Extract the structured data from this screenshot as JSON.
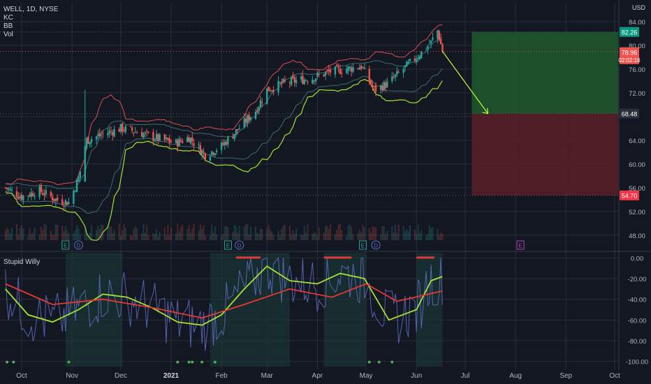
{
  "header": {
    "symbol": "WELL, 1D, NYSE",
    "currency": "USD",
    "indicators": [
      "KC",
      "BB",
      "Vol"
    ],
    "oscillator_name": "Stupid Willy"
  },
  "colors": {
    "background": "#131722",
    "grid": "#2a2e39",
    "candle_up": "#26a69a",
    "candle_down": "#ef5350",
    "bb_band": "#d84f4f",
    "kc_band": "#a6e22e",
    "target_zone": "#1f5a2b",
    "stop_zone": "#5a1f27",
    "osc_line": "#5c6bc0",
    "osc_fast": "#a6e22e",
    "osc_slow": "#e53935"
  },
  "price_badges": {
    "target": "82.26",
    "current": "78.96",
    "countdown": "02:02:16",
    "entry": "68.48",
    "stop": "54.70"
  },
  "event_markers": [
    {
      "label": "E",
      "x_month": "Nov-pre"
    },
    {
      "label": "D",
      "x_month": "Nov"
    },
    {
      "label": "E",
      "x_month": "Feb"
    },
    {
      "label": "D",
      "x_month": "Feb"
    },
    {
      "label": "E",
      "x_month": "Apr-end"
    },
    {
      "label": "D",
      "x_month": "May"
    },
    {
      "label": "E",
      "x_month": "Aug"
    }
  ],
  "chart_data": [
    {
      "type": "line",
      "title": "WELL, 1D, NYSE",
      "ylabel": "USD",
      "y_ticks": [
        84.0,
        80.0,
        76.0,
        72.0,
        68.0,
        64.0,
        60.0,
        56.0,
        52.0,
        48.0
      ],
      "y_tick_labels": [
        "84.00",
        "80.00",
        "76.00",
        "72.00",
        "",
        "64.00",
        "60.00",
        "56.00",
        "52.00",
        "48.00"
      ],
      "ylim": [
        45.5,
        86.0
      ],
      "x_ticks": [
        "Oct",
        "Nov",
        "Dec",
        "2021",
        "Feb",
        "Mar",
        "Apr",
        "May",
        "Jun",
        "Jul",
        "Aug",
        "Sep",
        "Oct"
      ],
      "series": [
        {
          "name": "Close",
          "x": [
            "2020-09-21",
            "2020-10-01",
            "2020-10-12",
            "2020-10-22",
            "2020-10-30",
            "2020-11-05",
            "2020-11-10",
            "2020-11-20",
            "2020-12-01",
            "2020-12-10",
            "2020-12-21",
            "2021-01-04",
            "2021-01-12",
            "2021-01-22",
            "2021-02-01",
            "2021-02-10",
            "2021-02-22",
            "2021-03-01",
            "2021-03-10",
            "2021-03-18",
            "2021-03-29",
            "2021-04-08",
            "2021-04-19",
            "2021-04-28",
            "2021-05-06",
            "2021-05-14",
            "2021-05-24",
            "2021-06-03",
            "2021-06-10",
            "2021-06-14",
            "2021-06-17"
          ],
          "values": [
            56.0,
            54.5,
            55.5,
            54.0,
            53.5,
            57.5,
            64.0,
            65.0,
            66.0,
            65.5,
            64.5,
            63.5,
            64.5,
            61.5,
            63.0,
            65.5,
            69.0,
            72.5,
            73.5,
            74.0,
            74.5,
            75.5,
            76.0,
            76.5,
            72.5,
            73.5,
            76.0,
            78.5,
            80.5,
            82.5,
            79.0
          ]
        }
      ],
      "arrow": {
        "from": [
          "2021-06-17",
          79.0
        ],
        "to": [
          "2021-07-15",
          68.48
        ]
      }
    },
    {
      "type": "line",
      "title": "Stupid Willy",
      "y_ticks": [
        0,
        -20,
        -40,
        -60,
        -80,
        -100
      ],
      "y_tick_labels": [
        "0.00",
        "-20.00",
        "-40.00",
        "-60.00",
        "-80.00",
        "-100.00"
      ],
      "ylim": [
        -105,
        5
      ],
      "series": [
        {
          "name": "fast",
          "x": [
            "2020-09-21",
            "2020-10-05",
            "2020-10-20",
            "2020-11-05",
            "2020-11-20",
            "2020-12-05",
            "2020-12-20",
            "2021-01-05",
            "2021-01-20",
            "2021-02-01",
            "2021-02-15",
            "2021-03-01",
            "2021-03-15",
            "2021-04-01",
            "2021-04-15",
            "2021-04-30",
            "2021-05-15",
            "2021-06-01",
            "2021-06-10",
            "2021-06-17"
          ],
          "values": [
            -30,
            -55,
            -62,
            -50,
            -35,
            -38,
            -48,
            -62,
            -65,
            -55,
            -30,
            -8,
            -22,
            -25,
            -15,
            -20,
            -60,
            -50,
            -22,
            -18
          ]
        },
        {
          "name": "slow",
          "x": [
            "2020-09-21",
            "2020-10-20",
            "2020-11-20",
            "2020-12-20",
            "2021-01-20",
            "2021-02-15",
            "2021-03-15",
            "2021-04-10",
            "2021-05-01",
            "2021-05-20",
            "2021-06-17"
          ],
          "values": [
            -25,
            -45,
            -40,
            -48,
            -58,
            -45,
            -30,
            -38,
            -25,
            -42,
            -32
          ]
        }
      ]
    }
  ]
}
